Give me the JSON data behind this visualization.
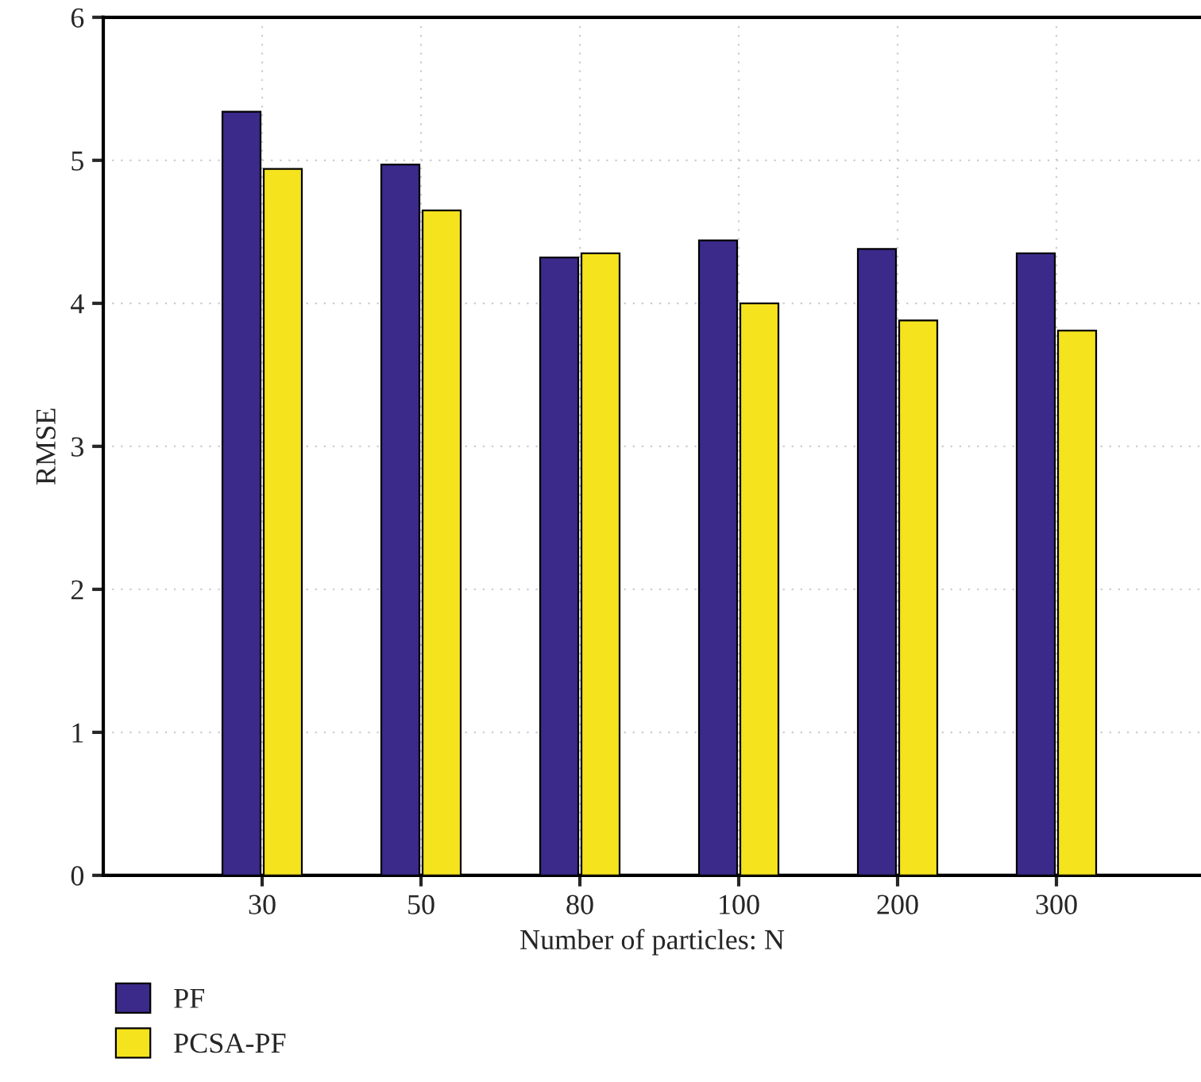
{
  "chart_data": {
    "type": "bar",
    "xlabel": "Number of particles: N",
    "ylabel": "RMSE",
    "categories": [
      "30",
      "50",
      "80",
      "100",
      "200",
      "300"
    ],
    "series": [
      {
        "name": "PF",
        "color": "#3b2a8a",
        "values": [
          5.34,
          4.97,
          4.32,
          4.44,
          4.38,
          4.35
        ]
      },
      {
        "name": "PCSA-PF",
        "color": "#f5e31e",
        "values": [
          4.94,
          4.65,
          4.35,
          4.0,
          3.88,
          3.81
        ]
      }
    ],
    "ylim": [
      0,
      6
    ],
    "yticks": [
      0,
      1,
      2,
      3,
      4,
      5,
      6
    ],
    "grid": true,
    "legend": "bottom left"
  }
}
